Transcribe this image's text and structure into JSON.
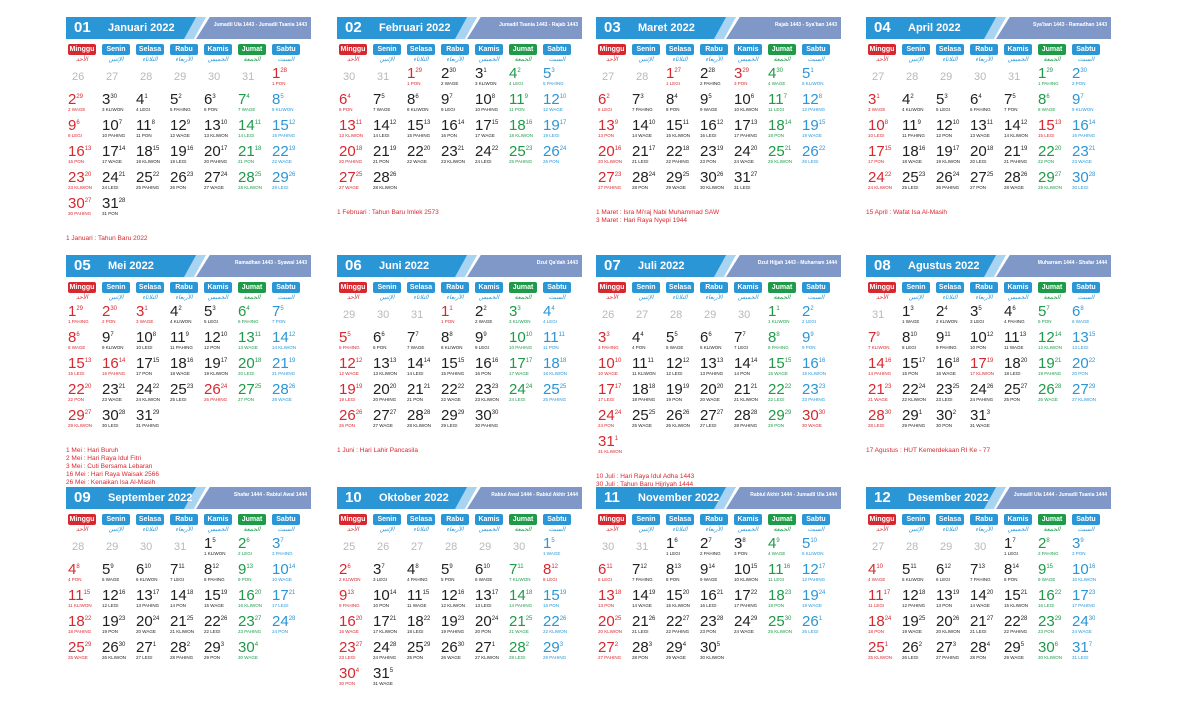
{
  "colors": {
    "red": "#d7282f",
    "dark": "#222222",
    "green": "#1e9a48",
    "blue": "#2b96d6"
  },
  "weekdays": [
    "Minggu",
    "Senin",
    "Selasa",
    "Rabu",
    "Kamis",
    "Jumat",
    "Sabtu"
  ],
  "weekday_colors": [
    "#d7282f",
    "#2b96d6",
    "#2b96d6",
    "#2b96d6",
    "#2b96d6",
    "#1e9a48",
    "#2b96d6"
  ],
  "weekday_arabic": [
    "الأحد",
    "الإثنين",
    "الثلاثاء",
    "الأربعاء",
    "الخميس",
    "الجمعة",
    "السبت"
  ],
  "pasaran": [
    "LEGI",
    "PAHING",
    "PON",
    "WAGE",
    "KLIWON"
  ],
  "months": [
    {
      "num": "01",
      "name": "Januari 2022",
      "hijri": "Jumadil Ula 1443 - Jumadil Tsania 1443",
      "days": 31,
      "start": 6,
      "prev_start": 26,
      "prev_end": 31,
      "hijri_start": 28,
      "pas_start": 2,
      "red_days": [
        1
      ],
      "holidays": [
        "1 Januari : Tahun Baru 2022"
      ]
    },
    {
      "num": "02",
      "name": "Februari 2022",
      "hijri": "Jumadil Tsania 1443 - Rajab 1443",
      "days": 28,
      "start": 2,
      "prev_start": 30,
      "prev_end": 31,
      "hijri_start": 29,
      "pas_start": 2,
      "red_days": [
        1
      ],
      "holidays": [
        "1 Februari : Tahun Baru Imlek 2573"
      ]
    },
    {
      "num": "03",
      "name": "Maret 2022",
      "hijri": "Rajab 1443 - Sya'ban 1443",
      "days": 31,
      "start": 2,
      "prev_start": 27,
      "prev_end": 28,
      "hijri_start": 27,
      "pas_start": 0,
      "red_days": [
        1,
        3
      ],
      "holidays": [
        "1 Maret : Isra Mi'raj Nabi Muhammad SAW",
        "3 Maret : Hari Raya Nyepi 1944"
      ]
    },
    {
      "num": "04",
      "name": "April 2022",
      "hijri": "Sya'ban 1443 - Ramadhan 1443",
      "days": 30,
      "start": 5,
      "prev_start": 27,
      "prev_end": 31,
      "hijri_start": 29,
      "pas_start": 1,
      "red_days": [
        15
      ],
      "holidays": [
        "15 April : Wafat Isa Al-Masih"
      ]
    },
    {
      "num": "05",
      "name": "Mei 2022",
      "hijri": "Ramadhan 1443 - Syawal 1443",
      "days": 31,
      "start": 0,
      "prev_start": 0,
      "prev_end": 0,
      "hijri_start": 29,
      "pas_start": 1,
      "red_days": [
        1,
        2,
        3,
        16,
        26
      ],
      "holidays": [
        "1 Mei : Hari Buruh",
        "2 Mei : Hari Raya Idul Fitri",
        "3 Mei : Cuti Bersama Lebaran",
        "16 Mei : Hari Raya Waisak 2566",
        "26 Mei : Kenaikan Isa Al-Masih"
      ]
    },
    {
      "num": "06",
      "name": "Juni 2022",
      "hijri": "Dzul Qa'dah 1443",
      "days": 30,
      "start": 3,
      "prev_start": 29,
      "prev_end": 31,
      "hijri_start": 1,
      "pas_start": 2,
      "red_days": [
        1
      ],
      "holidays": [
        "1 Juni : Hari Lahir Pancasila"
      ]
    },
    {
      "num": "07",
      "name": "Juli 2022",
      "hijri": "Dzul Hijjah 1443 - Muharram 1444",
      "days": 31,
      "start": 5,
      "prev_start": 26,
      "prev_end": 30,
      "hijri_start": 1,
      "pas_start": 4,
      "red_days": [
        10,
        30
      ],
      "holidays": [
        "10 Juli : Hari Raya Idul Adha 1443",
        "30 Juli : Tahun Baru Hijriyah 1444"
      ]
    },
    {
      "num": "08",
      "name": "Agustus 2022",
      "hijri": "Muharram 1444 - Shafar 1444",
      "days": 31,
      "start": 1,
      "prev_start": 31,
      "prev_end": 31,
      "hijri_start": 3,
      "pas_start": 3,
      "red_days": [
        17
      ],
      "holidays": [
        "17 Agustus : HUT Kemerdekaan RI Ke - 77"
      ]
    },
    {
      "num": "09",
      "name": "September 2022",
      "hijri": "Shafar 1444 - Rabiul Awal 1444",
      "days": 30,
      "start": 4,
      "prev_start": 28,
      "prev_end": 31,
      "hijri_start": 5,
      "pas_start": 4,
      "red_days": [],
      "holidays": []
    },
    {
      "num": "10",
      "name": "Oktober 2022",
      "hijri": "Rabiul Awal 1444 - Rabiul Akhir 1444",
      "days": 31,
      "start": 6,
      "prev_start": 25,
      "prev_end": 30,
      "hijri_start": 5,
      "pas_start": 3,
      "red_days": [
        8
      ],
      "holidays": []
    },
    {
      "num": "11",
      "name": "November 2022",
      "hijri": "Rabiul Akhir 1444 - Jumadil Ula 1444",
      "days": 30,
      "start": 2,
      "prev_start": 30,
      "prev_end": 31,
      "hijri_start": 6,
      "pas_start": 0,
      "red_days": [],
      "holidays": []
    },
    {
      "num": "12",
      "name": "Desember 2022",
      "hijri": "Jumadil Ula 1444 - Jumadil Tsania 1444",
      "days": 31,
      "start": 4,
      "prev_start": 27,
      "prev_end": 30,
      "hijri_start": 7,
      "pas_start": 0,
      "red_days": [],
      "holidays": []
    }
  ]
}
